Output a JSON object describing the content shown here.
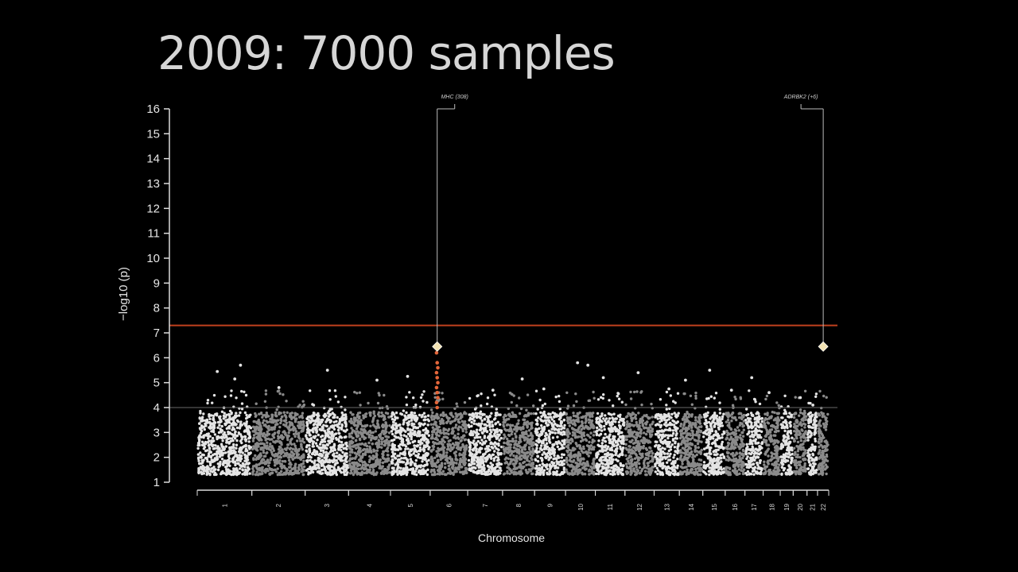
{
  "slide": {
    "title": "2009: 7000 samples"
  },
  "chart_data": {
    "type": "scatter",
    "subtype": "manhattan",
    "xlabel": "Chromosome",
    "ylabel": "−log10 (p)",
    "ylim": [
      1,
      16
    ],
    "yticks": [
      1,
      2,
      3,
      4,
      5,
      6,
      7,
      8,
      9,
      10,
      11,
      12,
      13,
      14,
      15,
      16
    ],
    "chromosomes": [
      "1",
      "2",
      "3",
      "4",
      "5",
      "6",
      "7",
      "8",
      "9",
      "10",
      "11",
      "12",
      "13",
      "14",
      "15",
      "16",
      "17",
      "18",
      "19",
      "20",
      "21",
      "22"
    ],
    "chromosome_lengths_mb": [
      249,
      243,
      198,
      191,
      181,
      171,
      159,
      146,
      141,
      136,
      135,
      133,
      115,
      107,
      102,
      90,
      83,
      78,
      59,
      63,
      48,
      51
    ],
    "point_colors": [
      "#e4e4e4",
      "#8a8a8a"
    ],
    "significance_threshold": {
      "value": 7.3,
      "color": "#c0401e"
    },
    "suggestive_threshold": {
      "value": 4,
      "color": "#6a6a6a"
    },
    "dense_band_max": 3.8,
    "annotations": [
      {
        "label": "MHC (308)",
        "chromosome": "6",
        "position_mb": 32,
        "top_snp": 6.45
      },
      {
        "label": "ADRBK2 (+6)",
        "chromosome": "22",
        "position_mb": 26,
        "top_snp": 6.45
      }
    ],
    "highlight_cluster": {
      "chromosome": "6",
      "color": "#e4663a",
      "values": [
        6.2,
        5.8,
        5.6,
        5.4,
        5.2,
        5.0,
        4.8,
        4.6,
        4.4,
        4.2,
        4.0
      ]
    },
    "notable_points": [
      {
        "chromosome": "1",
        "value": 5.7
      },
      {
        "chromosome": "1",
        "value": 5.45
      },
      {
        "chromosome": "1",
        "value": 5.15
      },
      {
        "chromosome": "2",
        "value": 4.8
      },
      {
        "chromosome": "3",
        "value": 5.5
      },
      {
        "chromosome": "4",
        "value": 5.1
      },
      {
        "chromosome": "5",
        "value": 5.25
      },
      {
        "chromosome": "7",
        "value": 4.7
      },
      {
        "chromosome": "8",
        "value": 5.15
      },
      {
        "chromosome": "9",
        "value": 4.75
      },
      {
        "chromosome": "10",
        "value": 5.8
      },
      {
        "chromosome": "10",
        "value": 5.7
      },
      {
        "chromosome": "11",
        "value": 5.2
      },
      {
        "chromosome": "12",
        "value": 5.4
      },
      {
        "chromosome": "13",
        "value": 4.75
      },
      {
        "chromosome": "14",
        "value": 5.1
      },
      {
        "chromosome": "15",
        "value": 5.5
      },
      {
        "chromosome": "16",
        "value": 4.7
      },
      {
        "chromosome": "17",
        "value": 5.2
      },
      {
        "chromosome": "18",
        "value": 4.6
      },
      {
        "chromosome": "20",
        "value": 4.4
      },
      {
        "chromosome": "21",
        "value": 4.1
      }
    ]
  }
}
